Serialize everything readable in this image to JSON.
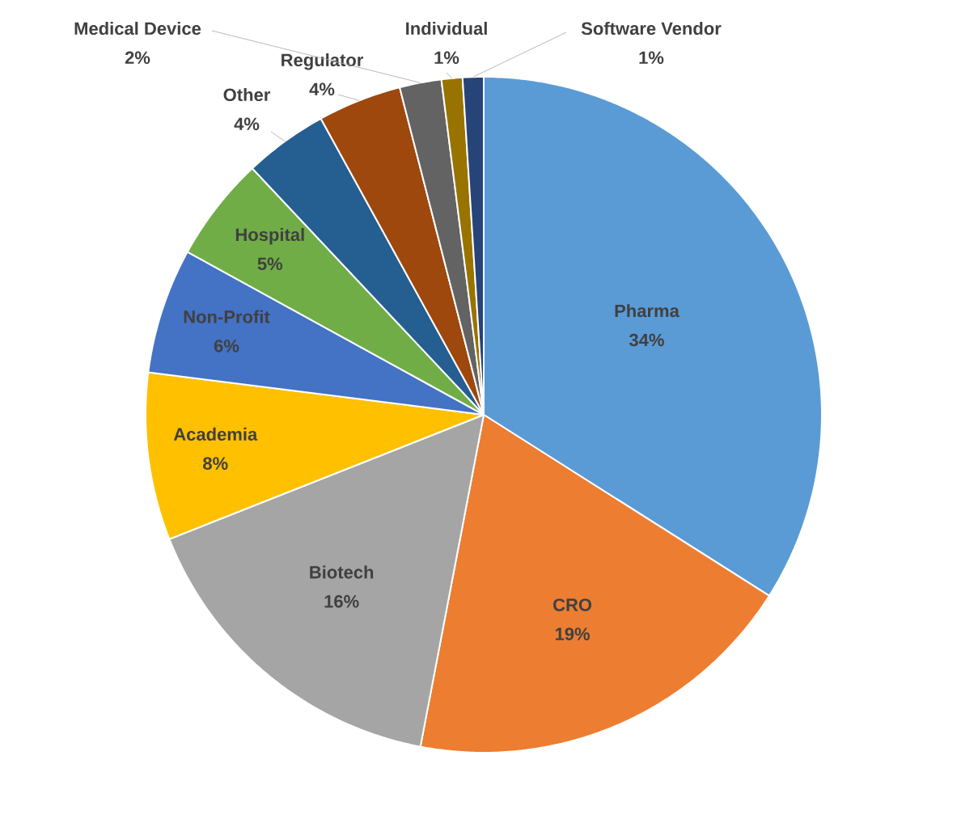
{
  "chart_data": {
    "type": "pie",
    "categories": [
      "Pharma",
      "CRO",
      "Biotech",
      "Academia",
      "Non-Profit",
      "Hospital",
      "Other",
      "Regulator",
      "Medical Device",
      "Individual",
      "Software Vendor"
    ],
    "values": [
      34,
      19,
      16,
      8,
      6,
      5,
      4,
      4,
      2,
      1,
      1
    ],
    "value_labels": [
      "34%",
      "19%",
      "16%",
      "8%",
      "6%",
      "5%",
      "4%",
      "4%",
      "2%",
      "1%",
      "1%"
    ],
    "colors": [
      "#5b9bd5",
      "#ed7d31",
      "#a5a5a5",
      "#ffc000",
      "#4472c4",
      "#70ad47",
      "#255e91",
      "#9e480e",
      "#636363",
      "#997300",
      "#264478"
    ]
  }
}
